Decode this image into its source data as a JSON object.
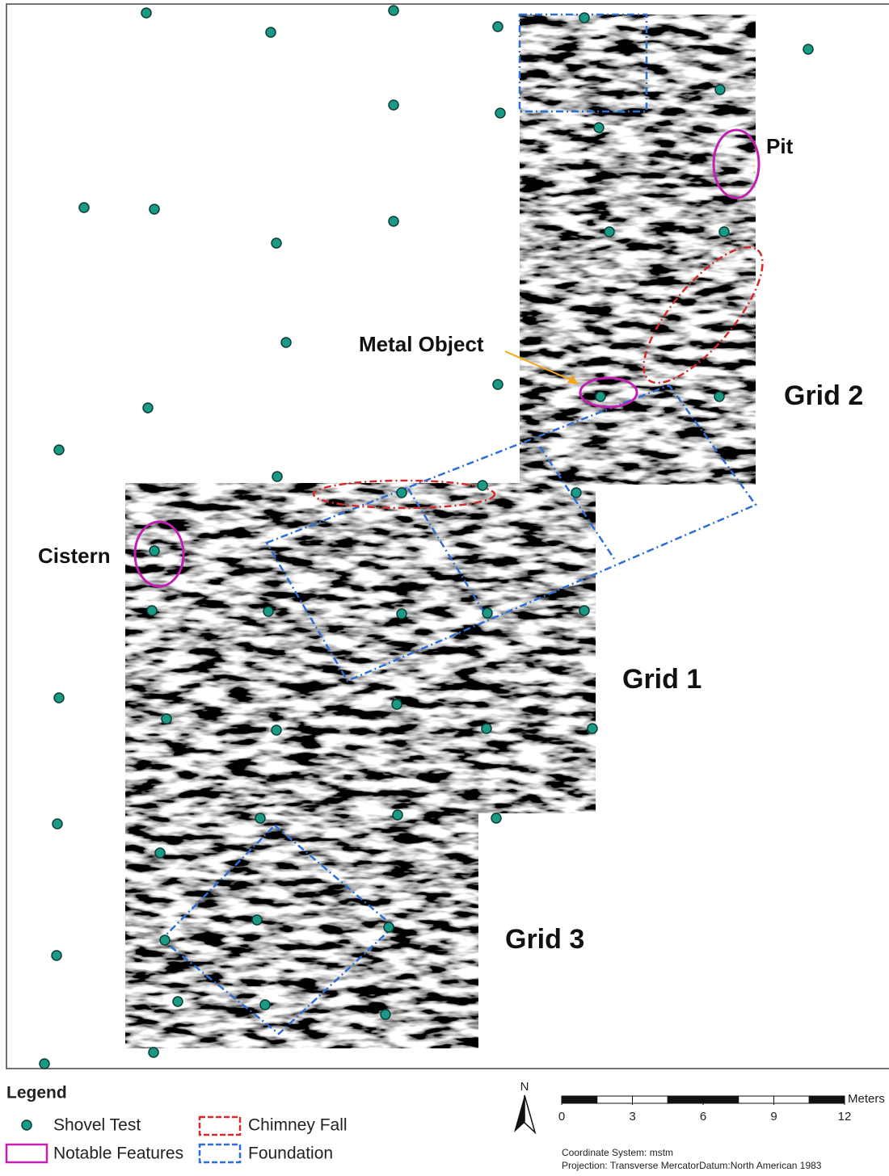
{
  "map": {
    "labels": {
      "pit": "Pit",
      "metal_object": "Metal Object",
      "cistern": "Cistern",
      "grid_1": "Grid 1",
      "grid_2": "Grid 2",
      "grid_3": "Grid 3"
    }
  },
  "legend": {
    "title": "Legend",
    "items": [
      "Shovel Test",
      "Notable Features",
      "Chimney Fall",
      "Foundation"
    ]
  },
  "north_arrow": "N",
  "scale_bar": {
    "unit": "Meters",
    "ticks": [
      0,
      3,
      6,
      9,
      12
    ]
  },
  "info": [
    "Coordinate System: mstm",
    "Projection: Transverse MercatorDatum:North American 1983"
  ]
}
